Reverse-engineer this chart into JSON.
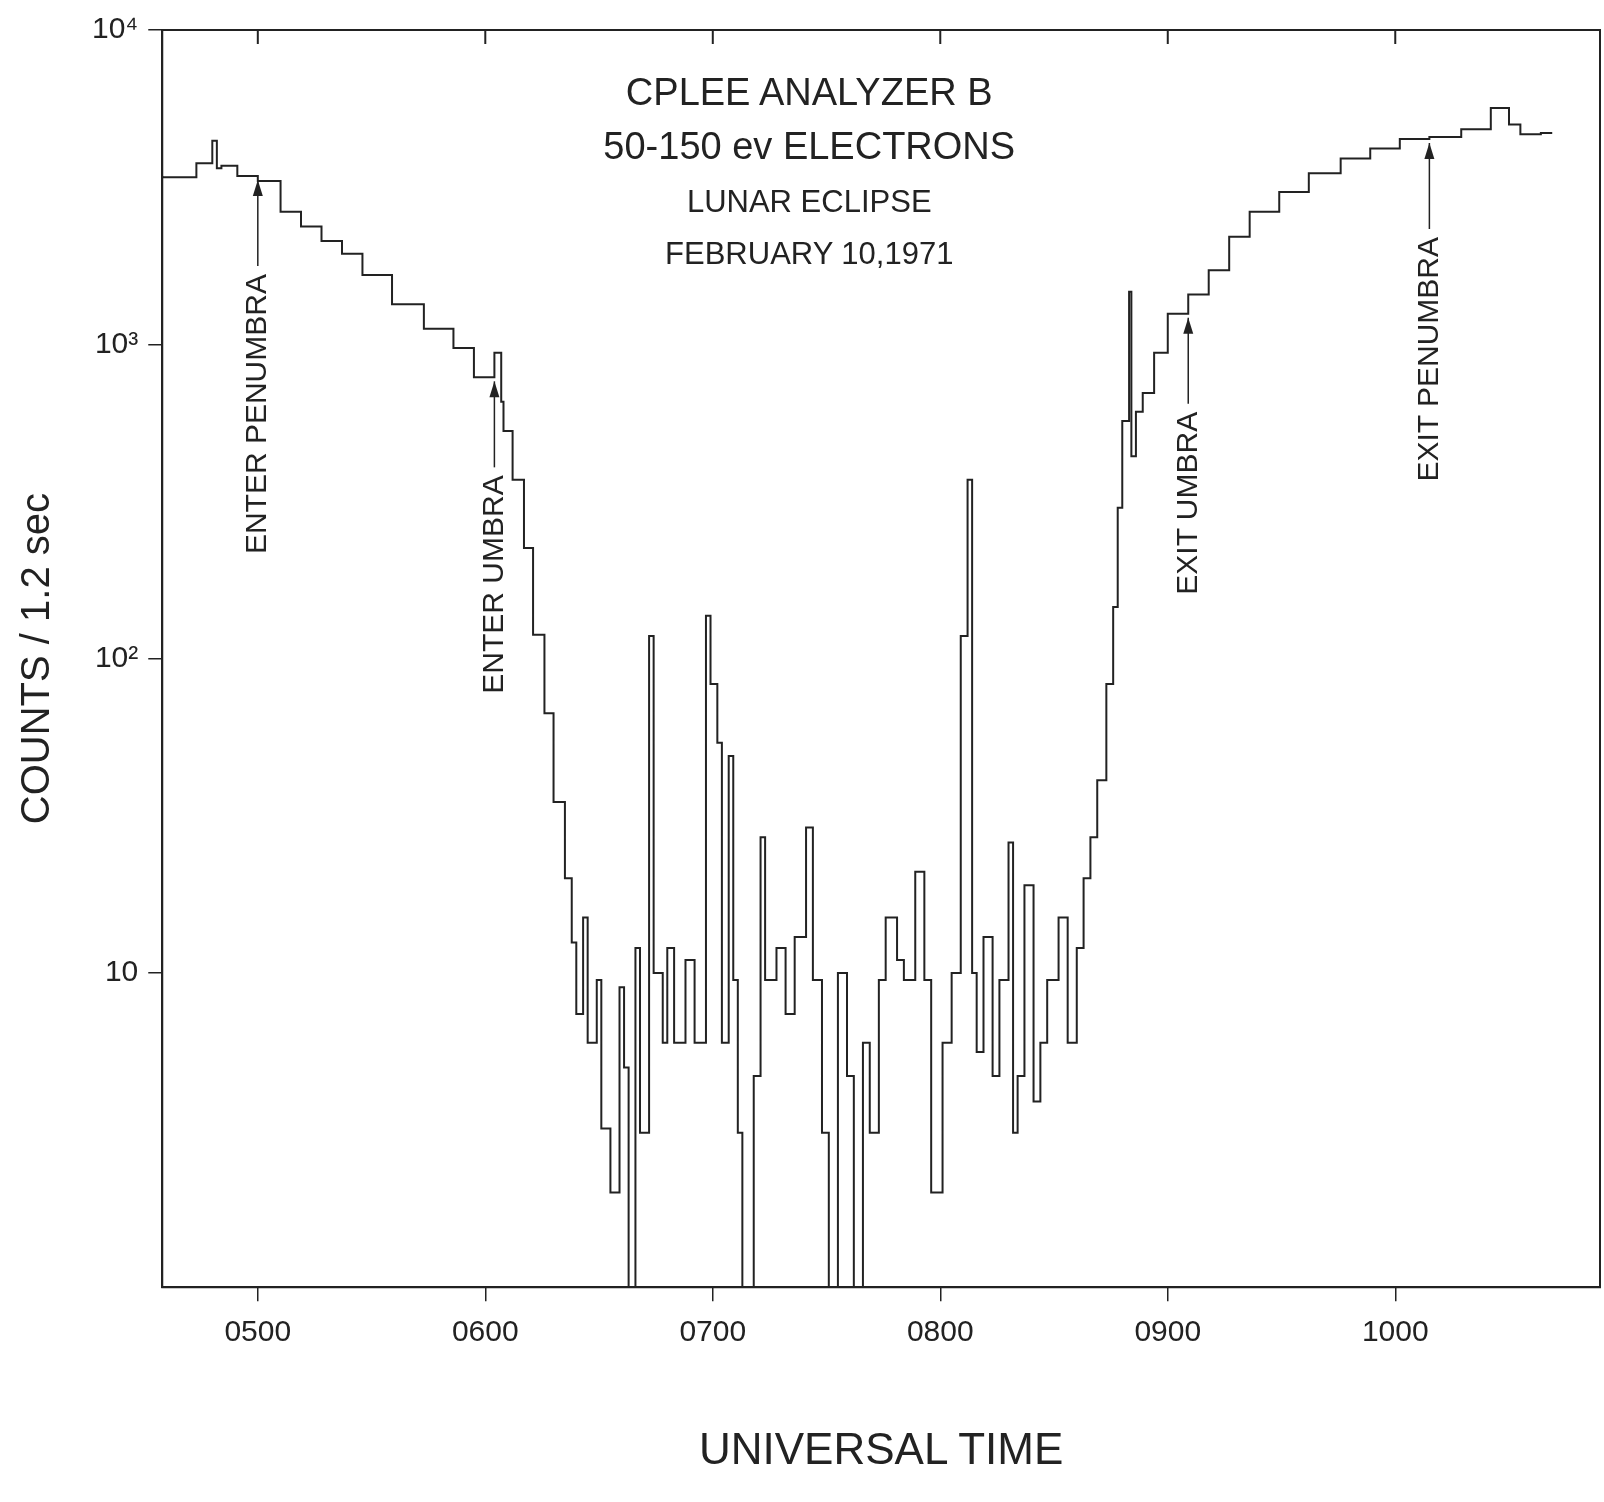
{
  "chart_data": {
    "type": "step",
    "title": "CPLEE ANALYZER B\n50-150 ev ELECTRONS",
    "subtitle": "LUNAR ECLIPSE\nFEBRUARY 10,1971",
    "xlabel": "UNIVERSAL TIME",
    "ylabel": "COUNTS / 1.2 sec",
    "log": "y",
    "grid": false,
    "legend": false,
    "color": "#222222",
    "xlim": [
      458,
      1090
    ],
    "ylim": [
      1,
      10000
    ],
    "xticks": [
      {
        "value": 500,
        "label": "0500"
      },
      {
        "value": 600,
        "label": "0600"
      },
      {
        "value": 700,
        "label": "0700"
      },
      {
        "value": 800,
        "label": "0800"
      },
      {
        "value": 900,
        "label": "0900"
      },
      {
        "value": 1000,
        "label": "1000"
      }
    ],
    "yticks": [
      {
        "value": 10,
        "label": "10"
      },
      {
        "value": 100,
        "label": "10²"
      },
      {
        "value": 1000,
        "label": "10³"
      },
      {
        "value": 10000,
        "label": "10⁴"
      }
    ],
    "annotations": [
      {
        "text": "ENTER PENUMBRA",
        "x": 500,
        "y": 3430
      },
      {
        "text": "ENTER UMBRA",
        "x": 604,
        "y": 785
      },
      {
        "text": "EXIT UMBRA",
        "x": 909,
        "y": 1250
      },
      {
        "text": "EXIT PENUMBRA",
        "x": 1015,
        "y": 4500
      }
    ],
    "x": [
      458,
      473,
      480,
      482,
      484,
      491,
      500,
      510,
      519,
      528,
      537,
      546,
      559,
      573,
      586,
      595,
      604,
      607,
      608,
      612,
      617,
      621,
      626,
      630,
      635,
      638,
      640,
      643,
      645,
      649,
      651,
      655,
      659,
      661,
      663,
      666,
      668,
      672,
      674,
      678,
      680,
      683,
      688,
      692,
      697,
      699,
      702,
      704,
      707,
      709,
      711,
      713,
      718,
      721,
      723,
      728,
      732,
      736,
      741,
      744,
      748,
      751,
      755,
      759,
      762,
      766,
      769,
      773,
      776,
      781,
      784,
      789,
      793,
      796,
      801,
      805,
      809,
      812,
      814,
      816,
      819,
      823,
      826,
      830,
      832,
      834,
      837,
      841,
      844,
      847,
      852,
      856,
      860,
      863,
      866,
      869,
      873,
      876,
      878,
      880,
      883,
      884,
      886,
      889,
      894,
      900,
      909,
      918,
      927,
      936,
      949,
      962,
      976,
      989,
      1002,
      1015,
      1029,
      1042,
      1050,
      1055,
      1064,
      1069
    ],
    "values": [
      3430,
      3400,
      3770,
      4440,
      3630,
      3700,
      3430,
      3310,
      2640,
      2370,
      2130,
      1940,
      1660,
      1340,
      1120,
      973,
      785,
      940,
      656,
      530,
      371,
      225,
      119,
      67,
      35,
      20,
      12.5,
      7.4,
      15,
      6,
      9.5,
      3.2,
      2,
      9,
      5,
      1,
      12,
      3.1,
      118,
      10,
      6,
      12,
      6,
      11,
      6,
      137,
      83,
      54,
      6,
      49,
      9.5,
      3.1,
      1,
      4.7,
      27,
      9.5,
      12,
      7.4,
      13,
      29,
      9.5,
      3.1,
      1,
      10,
      4.7,
      1,
      6,
      3.1,
      9.5,
      15,
      11,
      9.5,
      21,
      9.5,
      2,
      6,
      10,
      118,
      371,
      10,
      5.6,
      13,
      4.7,
      9.5,
      26,
      3.1,
      4.7,
      19,
      3.9,
      6,
      9.5,
      15,
      6,
      12,
      20,
      27,
      41,
      83,
      146,
      302,
      570,
      1470,
      440,
      610,
      700,
      940,
      1250,
      1440,
      1720,
      2200,
      2640,
      3050,
      3500,
      3900,
      4200,
      4500,
      4570,
      4830,
      5650,
      5000,
      4660,
      4700
    ]
  }
}
